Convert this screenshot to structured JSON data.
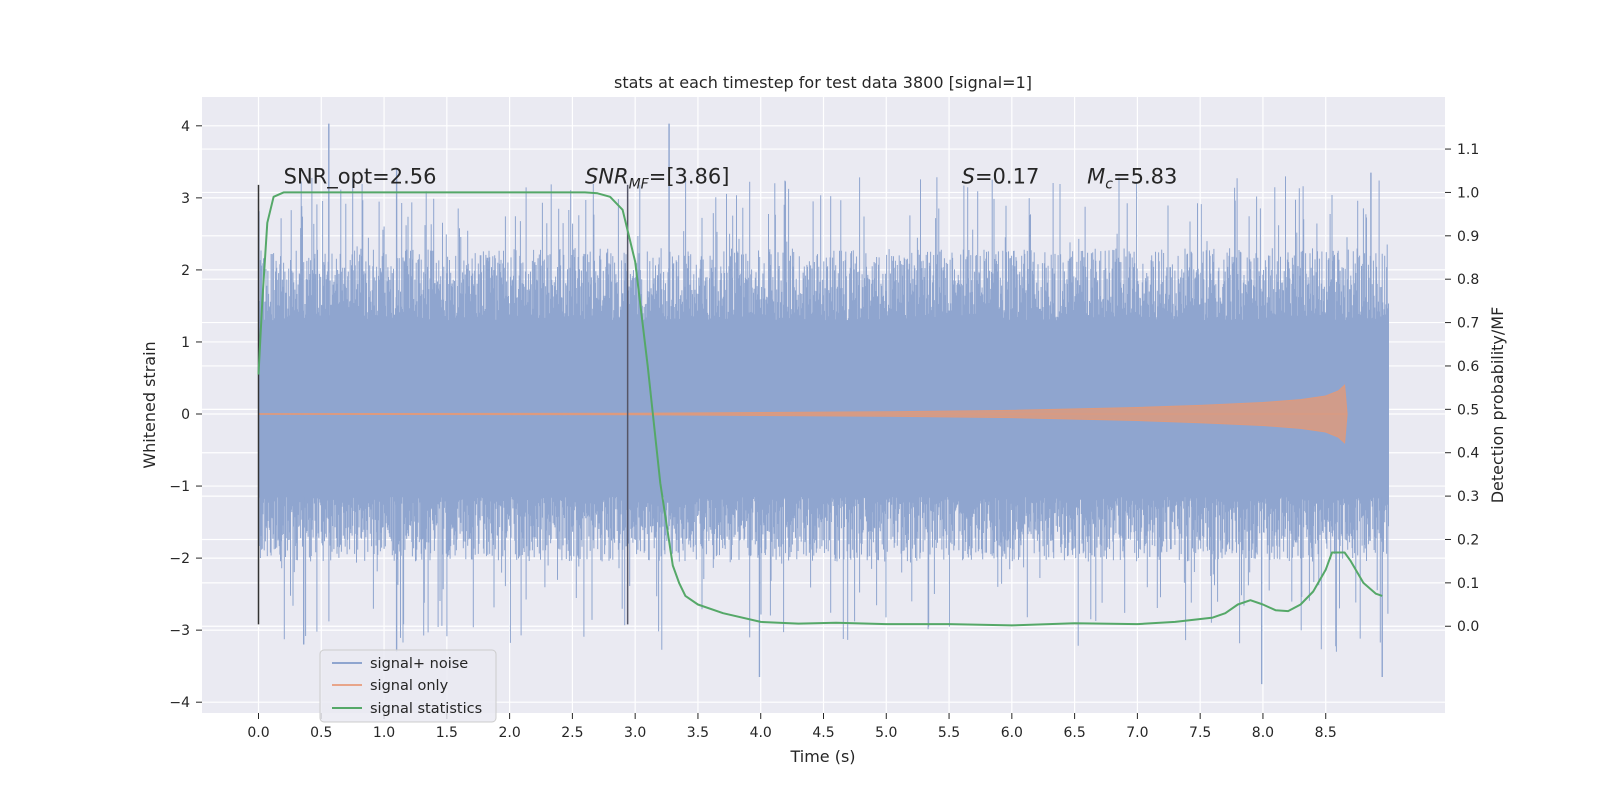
{
  "chart_data": {
    "type": "line",
    "title": "stats at each timestep for test data 3800 [signal=1]",
    "xlabel": "Time (s)",
    "ylabel": "Whitened strain",
    "y2label": "Detection probability/MF",
    "xlim": [
      -0.45,
      9.45
    ],
    "ylim": [
      -4.15,
      4.4
    ],
    "y2lim": [
      -0.2,
      1.22
    ],
    "xticks": [
      0.0,
      0.5,
      1.0,
      1.5,
      2.0,
      2.5,
      3.0,
      3.5,
      4.0,
      4.5,
      5.0,
      5.5,
      6.0,
      6.5,
      7.0,
      7.5,
      8.0,
      8.5
    ],
    "xtick_labels": [
      "0.0",
      "0.5",
      "1.0",
      "1.5",
      "2.0",
      "2.5",
      "3.0",
      "3.5",
      "4.0",
      "4.5",
      "5.0",
      "5.5",
      "6.0",
      "6.5",
      "7.0",
      "7.5",
      "8.0",
      "8.5"
    ],
    "yticks": [
      4,
      3,
      2,
      1,
      0,
      -1,
      -2,
      -3,
      -4
    ],
    "ytick_labels": [
      "4",
      "3",
      "2",
      "1",
      "0",
      "−1",
      "−2",
      "−3",
      "−4"
    ],
    "y2ticks": [
      1.1,
      1.0,
      0.9,
      0.8,
      0.7,
      0.6,
      0.5,
      0.4,
      0.3,
      0.2,
      0.1,
      0.0
    ],
    "y2tick_labels": [
      "1.1",
      "1.0",
      "0.9",
      "0.8",
      "0.7",
      "0.6",
      "0.5",
      "0.4",
      "0.3",
      "0.2",
      "0.1",
      "0.0"
    ],
    "grid": true,
    "legend": {
      "placement": "lower-left",
      "entries": [
        {
          "label": "signal+ noise",
          "color": "#8fa5cf"
        },
        {
          "label": "signal only",
          "color": "#e8a58a"
        },
        {
          "label": "signal statistics",
          "color": "#55a868"
        }
      ]
    },
    "annotations": [
      {
        "text": "SNR_opt=2.56",
        "x": 0.2,
        "y": 3.3
      },
      {
        "text": "SNR",
        "sub": "MF",
        "suffix": "=[3.86]",
        "italic": true,
        "x": 2.6,
        "y": 3.3
      },
      {
        "text": "S",
        "suffix": "=0.17",
        "italic": true,
        "x": 5.6,
        "y": 3.3
      },
      {
        "text": "M",
        "sub": "c",
        "suffix": "=5.83",
        "italic": true,
        "x": 6.6,
        "y": 3.3
      }
    ],
    "vlines": [
      {
        "x": 0.0,
        "ymin": -2.92,
        "ymax": 3.18,
        "color": "#333333"
      },
      {
        "x": 2.94,
        "ymin": -2.92,
        "ymax": 3.18,
        "color": "#555566"
      }
    ],
    "series": [
      {
        "name": "signal+ noise",
        "axis": "left",
        "color": "#8fa5cf",
        "x_range": [
          0.0,
          9.0
        ],
        "band_low": -1.15,
        "band_high": 1.3,
        "spike_max_extent": [
          3.3,
          4.03
        ],
        "spike_min_extent": [
          -3.65,
          -3.75
        ]
      },
      {
        "name": "signal only",
        "axis": "left",
        "color": "#dd9a7e",
        "x": [
          0.0,
          3.0,
          5.0,
          6.0,
          7.0,
          7.5,
          8.0,
          8.3,
          8.5,
          8.6,
          8.65,
          8.67
        ],
        "amplitude": [
          0.005,
          0.01,
          0.03,
          0.05,
          0.09,
          0.12,
          0.16,
          0.2,
          0.25,
          0.32,
          0.4,
          0.0
        ]
      },
      {
        "name": "signal statistics",
        "axis": "right",
        "color": "#55a868",
        "x": [
          0.0,
          0.03,
          0.07,
          0.12,
          0.2,
          0.35,
          0.6,
          1.0,
          1.5,
          2.0,
          2.4,
          2.6,
          2.7,
          2.8,
          2.9,
          3.0,
          3.1,
          3.2,
          3.3,
          3.35,
          3.4,
          3.5,
          3.7,
          4.0,
          4.3,
          4.6,
          5.0,
          5.5,
          5.8,
          6.0,
          6.5,
          7.0,
          7.3,
          7.6,
          7.7,
          7.8,
          7.9,
          8.0,
          8.1,
          8.2,
          8.3,
          8.4,
          8.5,
          8.55,
          8.65,
          8.7,
          8.8,
          8.9,
          8.95
        ],
        "y": [
          0.58,
          0.75,
          0.93,
          0.99,
          1.0,
          1.0,
          1.0,
          1.0,
          1.0,
          1.0,
          1.0,
          1.0,
          0.998,
          0.99,
          0.96,
          0.84,
          0.6,
          0.33,
          0.14,
          0.1,
          0.07,
          0.05,
          0.03,
          0.01,
          0.006,
          0.008,
          0.005,
          0.005,
          0.003,
          0.002,
          0.007,
          0.005,
          0.01,
          0.02,
          0.03,
          0.05,
          0.06,
          0.05,
          0.037,
          0.035,
          0.05,
          0.08,
          0.13,
          0.17,
          0.17,
          0.15,
          0.1,
          0.075,
          0.07
        ]
      }
    ]
  }
}
